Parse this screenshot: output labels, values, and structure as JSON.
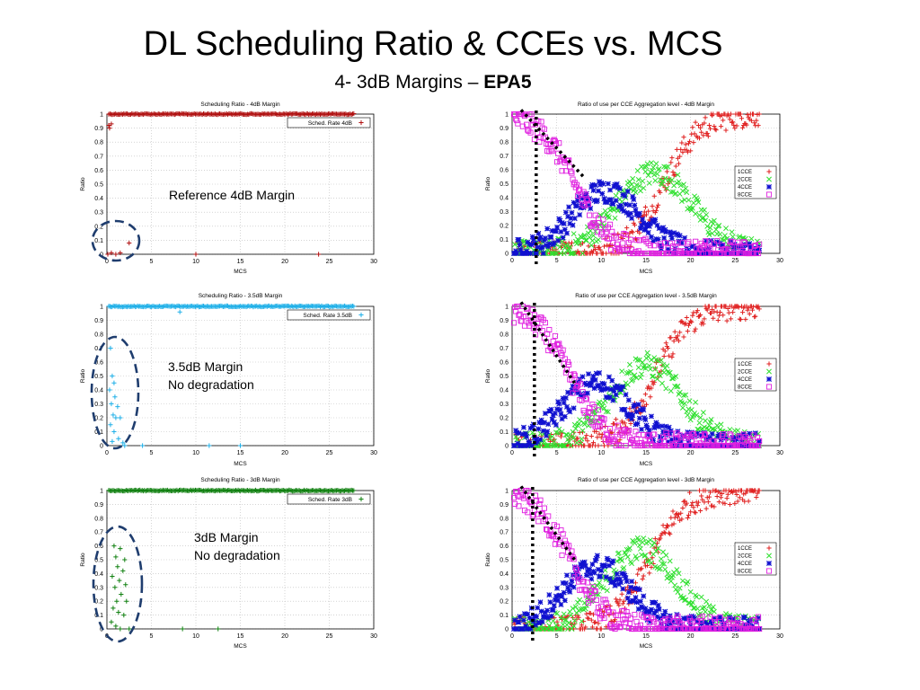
{
  "title": "DL Scheduling Ratio & CCEs vs. MCS",
  "subtitle": {
    "prefix": "4- 3dB Margins – ",
    "bold": "EPA5"
  },
  "annotations": {
    "a1": "Reference 4dB Margin",
    "a2_line1": "3.5dB Margin",
    "a2_line2": "No degradation",
    "a3_line1": "3dB Margin",
    "a3_line2": "No degradation"
  },
  "colors": {
    "red": "#b01010",
    "cyan": "#20b0e8",
    "green": "#108010",
    "cce1": "#e02020",
    "cce2": "#30e030",
    "cce4": "#1010d0",
    "cce8": "#e020e0",
    "ellipse": "#1f3d6e"
  },
  "chart_data": [
    {
      "type": "scatter",
      "title": "Scheduling Ratio - 4dB Margin",
      "xlabel": "MCS",
      "ylabel": "Ratio",
      "xlim": [
        0,
        30
      ],
      "ylim": [
        0,
        1
      ],
      "xticks": [
        "0",
        "5",
        "10",
        "15",
        "20",
        "25",
        "30"
      ],
      "yticks": [
        "0",
        "0.1",
        "0.2",
        "0.3",
        "0.4",
        "0.5",
        "0.6",
        "0.7",
        "0.8",
        "0.9",
        "1"
      ],
      "grid": true,
      "legend_position": "top-right",
      "series": [
        {
          "name": "Sched. Rate 4dB",
          "color": "#b01010",
          "main": {
            "x_start": 0.2,
            "x_end": 27.8,
            "y": 1.0
          },
          "extra_points": [
            [
              0.2,
              0.92
            ],
            [
              0.3,
              0.9
            ],
            [
              0.5,
              0.93
            ],
            [
              0.1,
              0.0
            ],
            [
              0.5,
              0.01
            ],
            [
              1.0,
              0.0
            ],
            [
              1.5,
              0.01
            ],
            [
              2.5,
              0.08
            ],
            [
              10.0,
              0.0
            ],
            [
              23.8,
              0.0
            ]
          ]
        }
      ]
    },
    {
      "type": "scatter",
      "title": "Scheduling Ratio - 3.5dB Margin",
      "xlabel": "MCS",
      "ylabel": "Ratio",
      "xlim": [
        0,
        30
      ],
      "ylim": [
        0,
        1
      ],
      "xticks": [
        "0",
        "5",
        "10",
        "15",
        "20",
        "25",
        "30"
      ],
      "yticks": [
        "0",
        "0.1",
        "0.2",
        "0.3",
        "0.4",
        "0.5",
        "0.6",
        "0.7",
        "0.8",
        "0.9",
        "1"
      ],
      "grid": true,
      "legend_position": "top-right",
      "series": [
        {
          "name": "Sched. Rate 3.5dB",
          "color": "#20b0e8",
          "main": {
            "x_start": 0.2,
            "x_end": 27.8,
            "y": 1.0
          },
          "extra_points": [
            [
              8.2,
              0.96
            ],
            [
              0.4,
              0.7
            ],
            [
              0.6,
              0.5
            ],
            [
              0.8,
              0.45
            ],
            [
              0.3,
              0.4
            ],
            [
              0.9,
              0.35
            ],
            [
              0.5,
              0.3
            ],
            [
              1.2,
              0.28
            ],
            [
              0.7,
              0.22
            ],
            [
              1.0,
              0.2
            ],
            [
              1.5,
              0.2
            ],
            [
              0.4,
              0.15
            ],
            [
              0.8,
              0.1
            ],
            [
              1.3,
              0.05
            ],
            [
              0.6,
              0.03
            ],
            [
              1.8,
              0.02
            ],
            [
              2.0,
              0.0
            ],
            [
              4.0,
              0.0
            ],
            [
              11.5,
              0.0
            ],
            [
              15.0,
              0.0
            ]
          ]
        }
      ]
    },
    {
      "type": "scatter",
      "title": "Scheduling Ratio - 3dB Margin",
      "xlabel": "MCS",
      "ylabel": "Ratio",
      "xlim": [
        0,
        30
      ],
      "ylim": [
        0,
        1
      ],
      "xticks": [
        "0",
        "5",
        "10",
        "15",
        "20",
        "25",
        "30"
      ],
      "yticks": [
        "0",
        "0.1",
        "0.2",
        "0.3",
        "0.4",
        "0.5",
        "0.6",
        "0.7",
        "0.8",
        "0.9",
        "1"
      ],
      "grid": true,
      "legend_position": "top-right",
      "series": [
        {
          "name": "Sched. Rate 3dB",
          "color": "#108010",
          "main": {
            "x_start": 0.2,
            "x_end": 27.8,
            "y": 1.0
          },
          "extra_points": [
            [
              0.8,
              0.6
            ],
            [
              1.5,
              0.58
            ],
            [
              1.0,
              0.52
            ],
            [
              2.0,
              0.5
            ],
            [
              1.2,
              0.45
            ],
            [
              1.8,
              0.42
            ],
            [
              0.6,
              0.38
            ],
            [
              1.4,
              0.35
            ],
            [
              2.1,
              0.32
            ],
            [
              0.9,
              0.3
            ],
            [
              1.6,
              0.25
            ],
            [
              1.1,
              0.2
            ],
            [
              2.2,
              0.2
            ],
            [
              0.7,
              0.15
            ],
            [
              1.3,
              0.12
            ],
            [
              1.9,
              0.1
            ],
            [
              0.5,
              0.05
            ],
            [
              1.0,
              0.02
            ],
            [
              1.5,
              0.0
            ],
            [
              2.5,
              0.0
            ],
            [
              8.5,
              0.0
            ],
            [
              12.5,
              0.0
            ]
          ]
        }
      ]
    },
    {
      "type": "scatter",
      "title": "Ratio of use per CCE Aggregation level - 4dB Margin",
      "xlabel": "MCS",
      "ylabel": "Ratio",
      "xlim": [
        0,
        30
      ],
      "ylim": [
        0,
        1
      ],
      "xticks": [
        "0",
        "5",
        "10",
        "15",
        "20",
        "25",
        "30"
      ],
      "yticks": [
        "0",
        "0.1",
        "0.2",
        "0.3",
        "0.4",
        "0.5",
        "0.6",
        "0.7",
        "0.8",
        "0.9",
        "1"
      ],
      "grid": true,
      "legend_position": "right",
      "dotted_vertical_x": 2.7,
      "dotted_diagonal": [
        [
          1.0,
          1.03
        ],
        [
          8.0,
          0.55
        ]
      ],
      "series": [
        {
          "name": "1CCE",
          "color": "#e02020",
          "curve": "sigmoid_up",
          "center": 17,
          "width": 2.0,
          "peak": 1.0
        },
        {
          "name": "2CCE",
          "color": "#30e030",
          "curve": "bell",
          "center": 16,
          "width": 4.2,
          "peak": 0.58
        },
        {
          "name": "4CCE",
          "color": "#1010d0",
          "curve": "bell",
          "center": 10.5,
          "width": 3.8,
          "peak": 0.45
        },
        {
          "name": "8CCE",
          "color": "#e020e0",
          "curve": "sigmoid_down",
          "center": 7,
          "width": 2.0,
          "peak": 1.0
        }
      ]
    },
    {
      "type": "scatter",
      "title": "Ratio of use per CCE Aggregation level - 3.5dB Margin",
      "xlabel": "MCS",
      "ylabel": "Ratio",
      "xlim": [
        0,
        30
      ],
      "ylim": [
        0,
        1
      ],
      "xticks": [
        "0",
        "5",
        "10",
        "15",
        "20",
        "25",
        "30"
      ],
      "yticks": [
        "0",
        "0.1",
        "0.2",
        "0.3",
        "0.4",
        "0.5",
        "0.6",
        "0.7",
        "0.8",
        "0.9",
        "1"
      ],
      "grid": true,
      "legend_position": "right",
      "dotted_vertical_x": 2.5,
      "dotted_diagonal": [
        [
          1.0,
          1.03
        ],
        [
          7.0,
          0.45
        ]
      ],
      "series": [
        {
          "name": "1CCE",
          "color": "#e02020",
          "curve": "sigmoid_up",
          "center": 16,
          "width": 2.0,
          "peak": 1.0
        },
        {
          "name": "2CCE",
          "color": "#30e030",
          "curve": "bell",
          "center": 15,
          "width": 4.0,
          "peak": 0.58
        },
        {
          "name": "4CCE",
          "color": "#1010d0",
          "curve": "bell",
          "center": 9.5,
          "width": 3.8,
          "peak": 0.45
        },
        {
          "name": "8CCE",
          "color": "#e020e0",
          "curve": "sigmoid_down",
          "center": 6.5,
          "width": 2.0,
          "peak": 1.0
        }
      ]
    },
    {
      "type": "scatter",
      "title": "Ratio of use per CCE Aggregation level - 3dB Margin",
      "xlabel": "MCS",
      "ylabel": "Ratio",
      "xlim": [
        0,
        30
      ],
      "ylim": [
        0,
        1
      ],
      "xticks": [
        "0",
        "5",
        "10",
        "15",
        "20",
        "25",
        "30"
      ],
      "yticks": [
        "0",
        "0.1",
        "0.2",
        "0.3",
        "0.4",
        "0.5",
        "0.6",
        "0.7",
        "0.8",
        "0.9",
        "1"
      ],
      "grid": true,
      "legend_position": "right",
      "dotted_vertical_x": 2.3,
      "dotted_diagonal": [
        [
          1.0,
          1.03
        ],
        [
          7.0,
          0.5
        ]
      ],
      "series": [
        {
          "name": "1CCE",
          "color": "#e02020",
          "curve": "sigmoid_up",
          "center": 15.5,
          "width": 2.0,
          "peak": 1.0
        },
        {
          "name": "2CCE",
          "color": "#30e030",
          "curve": "bell",
          "center": 14.5,
          "width": 4.0,
          "peak": 0.58
        },
        {
          "name": "4CCE",
          "color": "#1010d0",
          "curve": "bell",
          "center": 9.5,
          "width": 3.8,
          "peak": 0.45
        },
        {
          "name": "8CCE",
          "color": "#e020e0",
          "curve": "sigmoid_down",
          "center": 6.5,
          "width": 2.0,
          "peak": 1.0
        }
      ]
    }
  ]
}
